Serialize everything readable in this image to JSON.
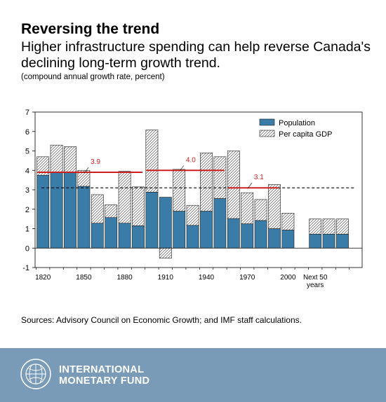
{
  "header": {
    "title": "Reversing the trend",
    "subtitle": "Higher infrastructure spending can help reverse Canada's declining long-term growth trend.",
    "unit_note": "(compound annual growth rate, percent)"
  },
  "chart_data": {
    "type": "bar",
    "stacked": true,
    "categories": [
      "1820",
      "1830",
      "1840",
      "1850",
      "1860",
      "1870",
      "1880",
      "1890",
      "1900",
      "1910",
      "1920",
      "1930",
      "1940",
      "1950",
      "1960",
      "1970",
      "1980",
      "1990",
      "2000",
      "",
      "Next 50 years",
      "",
      ""
    ],
    "x_tick_labels": [
      "1820",
      "1850",
      "1880",
      "1910",
      "1940",
      "1970",
      "2000",
      "Next 50",
      "years"
    ],
    "series": [
      {
        "name": "Population",
        "color": "#3a7ca8",
        "values": [
          3.75,
          3.92,
          3.9,
          3.18,
          1.28,
          1.57,
          1.28,
          1.15,
          2.88,
          2.62,
          1.9,
          1.17,
          1.9,
          2.55,
          1.52,
          1.25,
          1.42,
          1.0,
          0.93,
          null,
          0.72,
          0.72,
          0.72
        ]
      },
      {
        "name": "Per capita GDP",
        "pattern": "hatched",
        "values": [
          0.95,
          1.38,
          1.32,
          0.82,
          1.47,
          0.66,
          2.67,
          2.0,
          3.2,
          -0.52,
          2.15,
          1.03,
          3.0,
          2.15,
          3.48,
          1.6,
          1.08,
          2.27,
          0.87,
          null,
          0.78,
          0.78,
          0.78
        ]
      }
    ],
    "reference_lines": [
      {
        "label": "3.9",
        "value": 3.9,
        "from": "1820",
        "to": "1890",
        "color": "#cc1f1f"
      },
      {
        "label": "4.0",
        "value": 4.0,
        "from": "1900",
        "to": "1950",
        "color": "#cc1f1f"
      },
      {
        "label": "3.1",
        "value": 3.1,
        "from": "1960",
        "to": "1990",
        "color": "#cc1f1f"
      }
    ],
    "dashed_line": {
      "value": 3.1,
      "style": "dashed"
    },
    "ylim": [
      -1,
      7
    ],
    "y_ticks": [
      "-1",
      "0",
      "1",
      "2",
      "3",
      "4",
      "5",
      "6",
      "7"
    ],
    "legend_position": "top-right",
    "grid": false
  },
  "source_note": "Sources: Advisory Council on Economic Growth; and IMF staff calculations.",
  "footer": {
    "org_line1": "INTERNATIONAL",
    "org_line2": "MONETARY FUND",
    "background": "#7a9bb8"
  }
}
